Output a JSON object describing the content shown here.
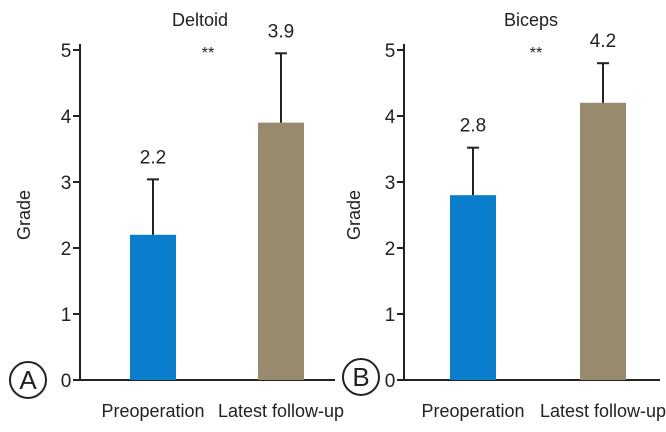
{
  "colors": {
    "preoperation": "#0a7dcc",
    "latest": "#988a6c",
    "axis": "#222222"
  },
  "chart_data": [
    {
      "type": "bar",
      "panel_label": "A",
      "title": "Deltoid",
      "ylabel": "Grade",
      "ylim": [
        0,
        5
      ],
      "yticks": [
        0,
        1,
        2,
        3,
        4,
        5
      ],
      "categories": [
        "Preoperation",
        "Latest follow-up"
      ],
      "values": [
        2.2,
        3.9
      ],
      "error_upper": [
        3.04,
        4.95
      ],
      "value_labels": [
        "2.2",
        "3.9"
      ],
      "significance": "**",
      "grid": false
    },
    {
      "type": "bar",
      "panel_label": "B",
      "title": "Biceps",
      "ylabel": "Grade",
      "ylim": [
        0,
        5
      ],
      "yticks": [
        0,
        1,
        2,
        3,
        4,
        5
      ],
      "categories": [
        "Preoperation",
        "Latest follow-up"
      ],
      "values": [
        2.8,
        4.2
      ],
      "error_upper": [
        3.52,
        4.8
      ],
      "value_labels": [
        "2.8",
        "4.2"
      ],
      "significance": "**",
      "grid": false
    }
  ]
}
